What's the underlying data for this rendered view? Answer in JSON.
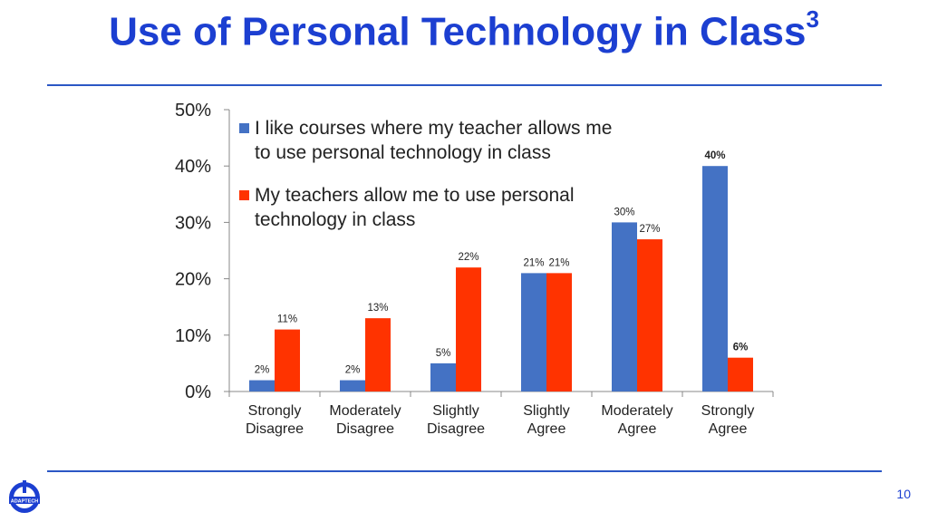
{
  "slide": {
    "title": "Use of Personal Technology in Class",
    "title_superscript": "3",
    "page_number": "10",
    "logo_text": "ADAPTECH"
  },
  "colors": {
    "series1": "#4472c4",
    "series2": "#ff3300",
    "title": "#1c3fd1",
    "rule": "#2b57c5"
  },
  "chart_data": {
    "type": "bar",
    "categories": [
      [
        "Strongly",
        "Disagree"
      ],
      [
        "Moderately",
        "Disagree"
      ],
      [
        "Slightly",
        "Disagree"
      ],
      [
        "Slightly",
        "Agree"
      ],
      [
        "Moderately",
        "Agree"
      ],
      [
        "Strongly",
        "Agree"
      ]
    ],
    "series": [
      {
        "name": "I like courses where my teacher allows me to use personal technology in class",
        "legend_lines": [
          "I like courses where my teacher allows me",
          "to use personal technology in class"
        ],
        "values": [
          2,
          2,
          5,
          21,
          30,
          40
        ],
        "labels": [
          "2%",
          "2%",
          "5%",
          "21%",
          "30%",
          "40%"
        ]
      },
      {
        "name": "My teachers allow me to use personal technology in class",
        "legend_lines": [
          "My teachers allow me to use personal",
          "technology in class"
        ],
        "values": [
          11,
          13,
          22,
          21,
          27,
          6
        ],
        "labels": [
          "11%",
          "13%",
          "22%",
          "21%",
          "27%",
          "6%"
        ]
      }
    ],
    "ylim": [
      0,
      50
    ],
    "yticks": [
      "0%",
      "10%",
      "20%",
      "30%",
      "40%",
      "50%"
    ],
    "grid": false,
    "legend": "top-left"
  }
}
